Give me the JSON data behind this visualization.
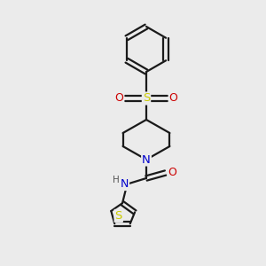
{
  "bg_color": "#ebebeb",
  "bond_color": "#1a1a1a",
  "bond_width": 1.6,
  "atom_colors": {
    "N": "#0000cc",
    "O": "#cc0000",
    "S_sulfonyl": "#cccc00",
    "S_thio": "#cccc00",
    "H_label": "#555555"
  },
  "xlim": [
    0,
    10
  ],
  "ylim": [
    0,
    10
  ],
  "figsize": [
    3.0,
    3.0
  ],
  "dpi": 100
}
